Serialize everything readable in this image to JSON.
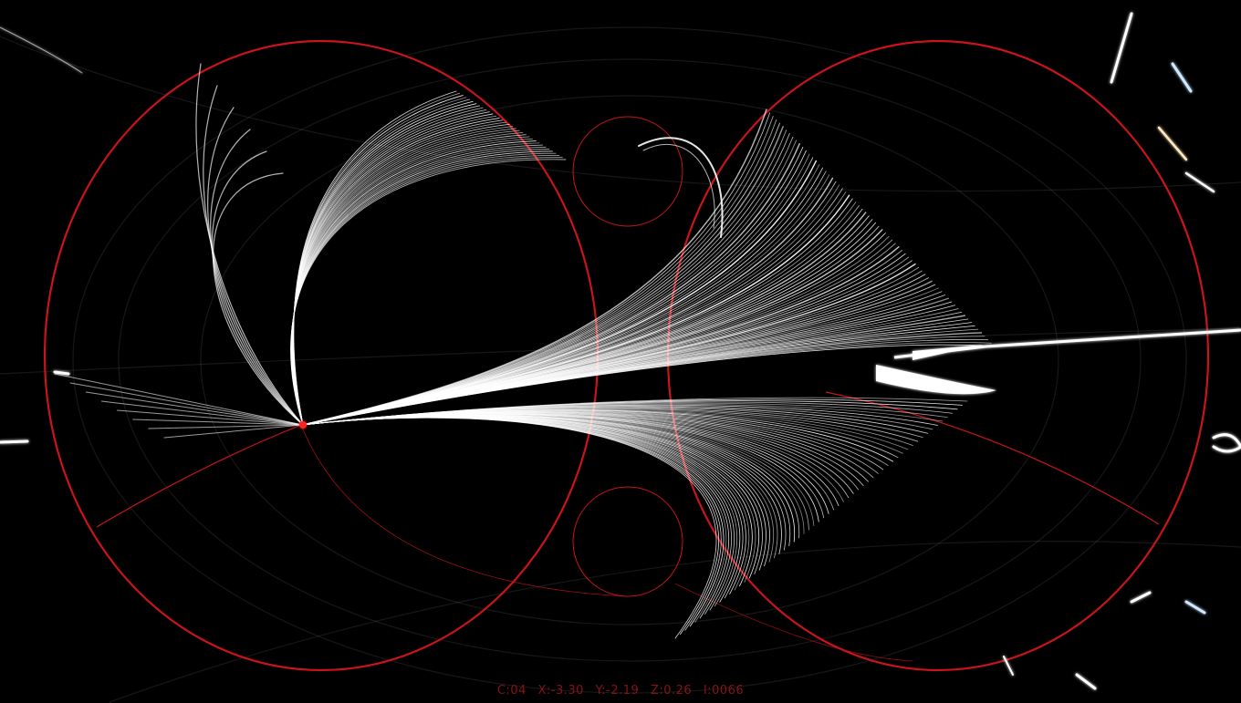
{
  "colors": {
    "background": "#000000",
    "guide_red": "#c8141a",
    "filament": "#ffffff",
    "readout": "#8a1216"
  },
  "readout": {
    "c": "C:04",
    "x": "X:-3.30",
    "y": "Y:-2.19",
    "z": "Z:0.26",
    "i": "I:0066"
  }
}
